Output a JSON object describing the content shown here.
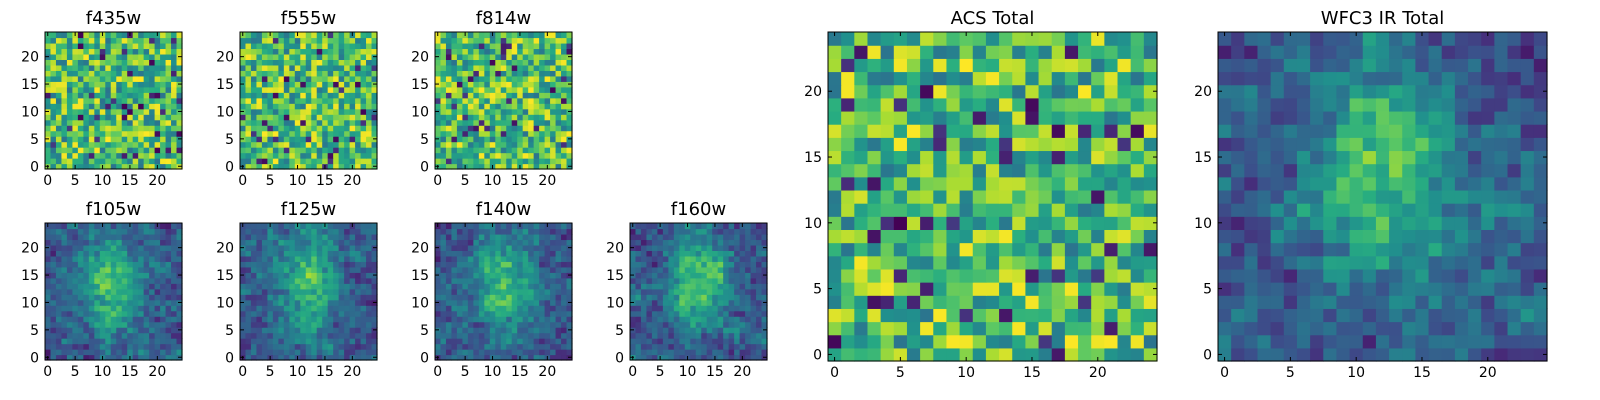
{
  "chart_data": [
    {
      "type": "heatmap",
      "title": "f435w",
      "size": 25,
      "xticks": [
        "0",
        "5",
        "10",
        "15",
        "20"
      ],
      "yticks": [
        "0",
        "5",
        "10",
        "15",
        "20"
      ],
      "colormap": "viridis",
      "pattern": "noise"
    },
    {
      "type": "heatmap",
      "title": "f555w",
      "size": 25,
      "xticks": [
        "0",
        "5",
        "10",
        "15",
        "20"
      ],
      "yticks": [
        "0",
        "5",
        "10",
        "15",
        "20"
      ],
      "colormap": "viridis",
      "pattern": "noise"
    },
    {
      "type": "heatmap",
      "title": "f814w",
      "size": 25,
      "xticks": [
        "0",
        "5",
        "10",
        "15",
        "20"
      ],
      "yticks": [
        "0",
        "5",
        "10",
        "15",
        "20"
      ],
      "colormap": "viridis",
      "pattern": "noise"
    },
    {
      "type": "heatmap",
      "title": "f105w",
      "size": 25,
      "xticks": [
        "0",
        "5",
        "10",
        "15",
        "20"
      ],
      "yticks": [
        "0",
        "5",
        "10",
        "15",
        "20"
      ],
      "colormap": "viridis",
      "pattern": "smooth"
    },
    {
      "type": "heatmap",
      "title": "f125w",
      "size": 25,
      "xticks": [
        "0",
        "5",
        "10",
        "15",
        "20"
      ],
      "yticks": [
        "0",
        "5",
        "10",
        "15",
        "20"
      ],
      "colormap": "viridis",
      "pattern": "smooth"
    },
    {
      "type": "heatmap",
      "title": "f140w",
      "size": 25,
      "xticks": [
        "0",
        "5",
        "10",
        "15",
        "20"
      ],
      "yticks": [
        "0",
        "5",
        "10",
        "15",
        "20"
      ],
      "colormap": "viridis",
      "pattern": "smooth"
    },
    {
      "type": "heatmap",
      "title": "f160w",
      "size": 25,
      "xticks": [
        "0",
        "5",
        "10",
        "15",
        "20"
      ],
      "yticks": [
        "0",
        "5",
        "10",
        "15",
        "20"
      ],
      "colormap": "viridis",
      "pattern": "smooth"
    },
    {
      "type": "heatmap",
      "title": "ACS Total",
      "size": 25,
      "xticks": [
        "0",
        "5",
        "10",
        "15",
        "20"
      ],
      "yticks": [
        "0",
        "5",
        "10",
        "15",
        "20"
      ],
      "colormap": "viridis",
      "pattern": "noise"
    },
    {
      "type": "heatmap",
      "title": "WFC3 IR Total",
      "size": 25,
      "xticks": [
        "0",
        "5",
        "10",
        "15",
        "20"
      ],
      "yticks": [
        "0",
        "5",
        "10",
        "15",
        "20"
      ],
      "colormap": "viridis",
      "pattern": "smooth"
    }
  ]
}
